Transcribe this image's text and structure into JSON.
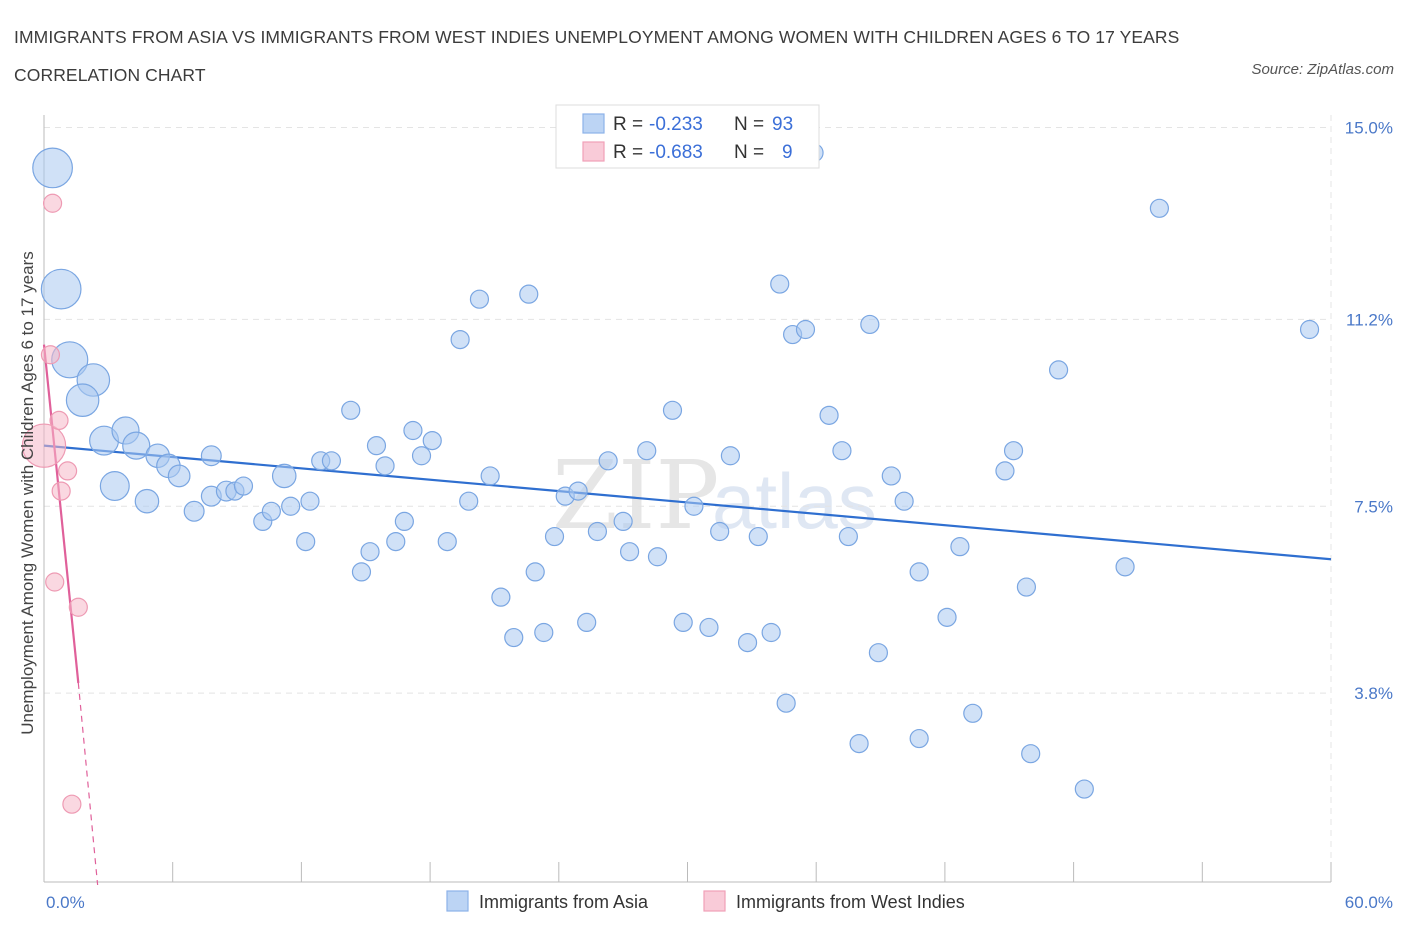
{
  "title": "IMMIGRANTS FROM ASIA VS IMMIGRANTS FROM WEST INDIES UNEMPLOYMENT AMONG WOMEN WITH CHILDREN AGES 6 TO 17 YEARS CORRELATION CHART",
  "source": "Source: ZipAtlas.com",
  "watermark_zip": "ZIP",
  "watermark_atlas": "atlas",
  "legend": {
    "r_label": "R =",
    "n_label": "N =",
    "asia_r": "-0.233",
    "asia_n": "93",
    "wi_r": "-0.683",
    "wi_n": "9"
  },
  "chart_data": {
    "type": "scatter",
    "title": "IMMIGRANTS FROM ASIA VS IMMIGRANTS FROM WEST INDIES UNEMPLOYMENT AMONG WOMEN WITH CHILDREN AGES 6 TO 17 YEARS CORRELATION CHART",
    "xlabel": "",
    "ylabel": "Unemployment Among Women with Children Ages 6 to 17 years",
    "xlim": [
      0,
      60
    ],
    "ylim": [
      0,
      15.5
    ],
    "x_tick_labels": [
      "0.0%",
      "60.0%"
    ],
    "y_ticks": [
      3.8,
      7.5,
      11.2,
      15.0
    ],
    "y_tick_labels": [
      "3.8%",
      "7.5%",
      "11.2%",
      "15.0%"
    ],
    "grid": true,
    "legend_position": "top-center",
    "colors": {
      "asia": "#a9c8f0",
      "asia_line": "#2f6fd0",
      "west_indies": "#f6b8c9",
      "wi_line": "#e0609a"
    },
    "series": [
      {
        "name": "Immigrants from Asia",
        "r": -0.233,
        "n": 93,
        "trend": [
          [
            0,
            8.7
          ],
          [
            60,
            6.45
          ]
        ],
        "points": [
          [
            0.4,
            14.2,
            2.2
          ],
          [
            0.8,
            11.8,
            2.2
          ],
          [
            1.2,
            10.4,
            2.0
          ],
          [
            2.3,
            10.0,
            1.8
          ],
          [
            1.8,
            9.6,
            1.8
          ],
          [
            2.8,
            8.8,
            1.6
          ],
          [
            3.8,
            9.0,
            1.5
          ],
          [
            4.3,
            8.7,
            1.5
          ],
          [
            3.3,
            7.9,
            1.6
          ],
          [
            4.8,
            7.6,
            1.3
          ],
          [
            5.3,
            8.5,
            1.3
          ],
          [
            5.8,
            8.3,
            1.3
          ],
          [
            6.3,
            8.1,
            1.2
          ],
          [
            7.0,
            7.4,
            1.1
          ],
          [
            7.8,
            7.7,
            1.1
          ],
          [
            7.8,
            8.5,
            1.1
          ],
          [
            8.5,
            7.8,
            1.1
          ],
          [
            8.9,
            7.8,
            1.0
          ],
          [
            9.3,
            7.9,
            1.0
          ],
          [
            10.2,
            7.2,
            1.0
          ],
          [
            10.6,
            7.4,
            1.0
          ],
          [
            11.2,
            8.1,
            1.3
          ],
          [
            11.5,
            7.5,
            1.0
          ],
          [
            12.4,
            7.6,
            1.0
          ],
          [
            12.2,
            6.8,
            1.0
          ],
          [
            12.9,
            8.4,
            1.0
          ],
          [
            13.4,
            8.4,
            1.0
          ],
          [
            14.3,
            9.4,
            1.0
          ],
          [
            14.8,
            6.2,
            1.0
          ],
          [
            15.2,
            6.6,
            1.0
          ],
          [
            15.5,
            8.7,
            1.0
          ],
          [
            15.9,
            8.3,
            1.0
          ],
          [
            16.4,
            6.8,
            1.0
          ],
          [
            16.8,
            7.2,
            1.0
          ],
          [
            17.2,
            9.0,
            1.0
          ],
          [
            17.6,
            8.5,
            1.0
          ],
          [
            18.1,
            8.8,
            1.0
          ],
          [
            18.8,
            6.8,
            1.0
          ],
          [
            19.4,
            10.8,
            1.0
          ],
          [
            19.8,
            7.6,
            1.0
          ],
          [
            20.3,
            11.6,
            1.0
          ],
          [
            20.8,
            8.1,
            1.0
          ],
          [
            21.3,
            5.7,
            1.0
          ],
          [
            21.9,
            4.9,
            1.0
          ],
          [
            22.6,
            11.7,
            1.0
          ],
          [
            22.9,
            6.2,
            1.0
          ],
          [
            23.3,
            5.0,
            1.0
          ],
          [
            23.8,
            6.9,
            1.0
          ],
          [
            24.3,
            7.7,
            1.0
          ],
          [
            24.9,
            7.8,
            1.0
          ],
          [
            25.3,
            5.2,
            1.0
          ],
          [
            25.8,
            7.0,
            1.0
          ],
          [
            26.3,
            8.4,
            1.0
          ],
          [
            27.0,
            7.2,
            1.0
          ],
          [
            27.3,
            6.6,
            1.0
          ],
          [
            28.1,
            8.6,
            1.0
          ],
          [
            28.6,
            6.5,
            1.0
          ],
          [
            29.3,
            9.4,
            1.0
          ],
          [
            29.8,
            5.2,
            1.0
          ],
          [
            30.3,
            7.5,
            1.0
          ],
          [
            31.0,
            5.1,
            1.0
          ],
          [
            31.5,
            7.0,
            1.0
          ],
          [
            32.0,
            8.5,
            1.0
          ],
          [
            32.8,
            4.8,
            1.0
          ],
          [
            33.3,
            6.9,
            1.0
          ],
          [
            33.9,
            5.0,
            1.0
          ],
          [
            34.3,
            11.9,
            1.0
          ],
          [
            34.6,
            3.6,
            1.0
          ],
          [
            34.9,
            10.9,
            1.0
          ],
          [
            35.5,
            11.0,
            1.0
          ],
          [
            35.9,
            14.5,
            1.0
          ],
          [
            36.6,
            9.3,
            1.0
          ],
          [
            37.2,
            8.6,
            1.0
          ],
          [
            37.5,
            6.9,
            1.0
          ],
          [
            38.0,
            2.8,
            1.0
          ],
          [
            38.5,
            11.1,
            1.0
          ],
          [
            38.9,
            4.6,
            1.0
          ],
          [
            39.5,
            8.1,
            1.0
          ],
          [
            40.1,
            7.6,
            1.0
          ],
          [
            40.8,
            6.2,
            1.0
          ],
          [
            40.8,
            2.9,
            1.0
          ],
          [
            42.1,
            5.3,
            1.0
          ],
          [
            42.7,
            6.7,
            1.0
          ],
          [
            43.3,
            3.4,
            1.0
          ],
          [
            44.8,
            8.2,
            1.0
          ],
          [
            45.2,
            8.6,
            1.0
          ],
          [
            45.8,
            5.9,
            1.0
          ],
          [
            46.0,
            2.6,
            1.0
          ],
          [
            47.3,
            10.2,
            1.0
          ],
          [
            48.5,
            1.9,
            1.0
          ],
          [
            50.4,
            6.3,
            1.0
          ],
          [
            52.0,
            13.4,
            1.0
          ],
          [
            59.0,
            11.0,
            1.0
          ]
        ]
      },
      {
        "name": "Immigrants from West Indies",
        "r": -0.683,
        "n": 9,
        "trend": [
          [
            0,
            10.7
          ],
          [
            1.6,
            4.0
          ]
        ],
        "trend_dashed": [
          [
            1.6,
            4.0
          ],
          [
            2.5,
            0.0
          ]
        ],
        "points": [
          [
            0.0,
            8.7,
            2.4
          ],
          [
            0.4,
            13.5,
            1.0
          ],
          [
            0.3,
            10.5,
            1.0
          ],
          [
            0.7,
            9.2,
            1.0
          ],
          [
            1.1,
            8.2,
            1.0
          ],
          [
            0.8,
            7.8,
            1.0
          ],
          [
            0.5,
            6.0,
            1.0
          ],
          [
            1.6,
            5.5,
            1.0
          ],
          [
            1.3,
            1.6,
            1.0
          ]
        ]
      }
    ]
  }
}
